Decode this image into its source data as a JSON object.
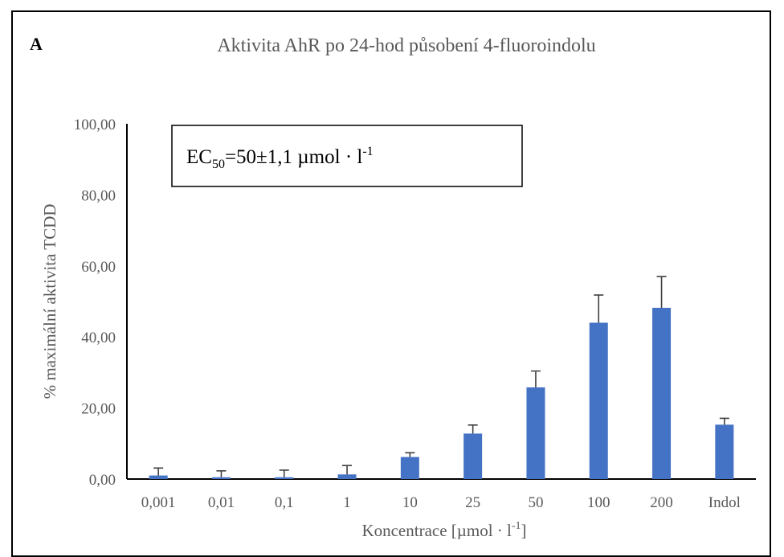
{
  "panel_label": "A",
  "chart_data": {
    "type": "bar",
    "title": "Aktivita AhR po 24-hod působení 4-fluoroindolu",
    "xlabel": "Koncentrace [µmol · l",
    "xlabel_sup": "-1",
    "xlabel_end": "]",
    "ylabel": "% maximální aktivita TCDD",
    "ylim": [
      0,
      100
    ],
    "yticks": [
      "0,00",
      "20,00",
      "40,00",
      "60,00",
      "80,00",
      "100,00"
    ],
    "ytick_values": [
      0,
      20,
      40,
      60,
      80,
      100
    ],
    "categories": [
      "0,001",
      "0,01",
      "0,1",
      "1",
      "10",
      "25",
      "50",
      "100",
      "200",
      "Indol"
    ],
    "values": [
      1.0,
      0.5,
      0.5,
      1.3,
      6.2,
      12.8,
      25.8,
      44.0,
      48.2,
      15.3
    ],
    "errors": [
      2.1,
      1.8,
      2.0,
      2.5,
      1.2,
      2.4,
      4.6,
      7.8,
      8.8,
      1.8
    ],
    "grid": false,
    "legend": "none",
    "bar_color": "#4472C4",
    "annotation": {
      "prefix": "EC",
      "subscript": "50",
      "value": "=50±1,1 µmol · l",
      "superscript": "-1"
    }
  }
}
